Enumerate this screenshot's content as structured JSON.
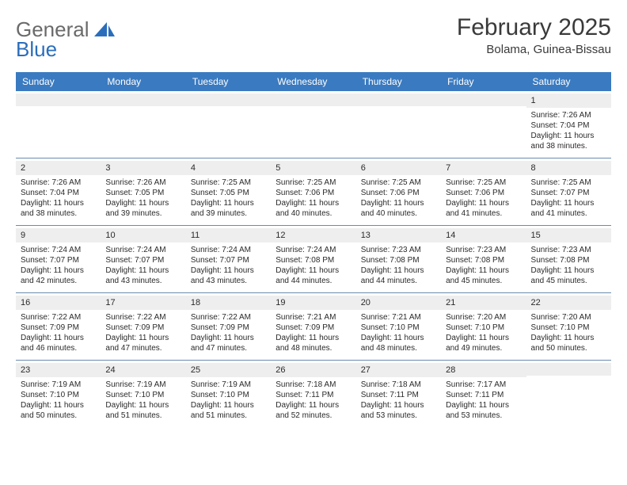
{
  "brand": {
    "word1": "General",
    "word2": "Blue"
  },
  "title": "February 2025",
  "location": "Bolama, Guinea-Bissau",
  "colors": {
    "header_bg": "#3a7ac0",
    "header_text": "#ffffff",
    "daynum_bg": "#eeeeee",
    "row_border": "#6a8bb0",
    "text": "#2a2a2a",
    "logo_gray": "#6a6a6a",
    "logo_blue": "#2a6ebb"
  },
  "fonts": {
    "title_size_pt": 22,
    "location_size_pt": 11,
    "dayhead_size_pt": 9,
    "cell_size_pt": 7.5
  },
  "day_headers": [
    "Sunday",
    "Monday",
    "Tuesday",
    "Wednesday",
    "Thursday",
    "Friday",
    "Saturday"
  ],
  "weeks": [
    [
      {
        "n": "",
        "sunrise": "",
        "sunset": "",
        "daylight": ""
      },
      {
        "n": "",
        "sunrise": "",
        "sunset": "",
        "daylight": ""
      },
      {
        "n": "",
        "sunrise": "",
        "sunset": "",
        "daylight": ""
      },
      {
        "n": "",
        "sunrise": "",
        "sunset": "",
        "daylight": ""
      },
      {
        "n": "",
        "sunrise": "",
        "sunset": "",
        "daylight": ""
      },
      {
        "n": "",
        "sunrise": "",
        "sunset": "",
        "daylight": ""
      },
      {
        "n": "1",
        "sunrise": "Sunrise: 7:26 AM",
        "sunset": "Sunset: 7:04 PM",
        "daylight": "Daylight: 11 hours and 38 minutes."
      }
    ],
    [
      {
        "n": "2",
        "sunrise": "Sunrise: 7:26 AM",
        "sunset": "Sunset: 7:04 PM",
        "daylight": "Daylight: 11 hours and 38 minutes."
      },
      {
        "n": "3",
        "sunrise": "Sunrise: 7:26 AM",
        "sunset": "Sunset: 7:05 PM",
        "daylight": "Daylight: 11 hours and 39 minutes."
      },
      {
        "n": "4",
        "sunrise": "Sunrise: 7:25 AM",
        "sunset": "Sunset: 7:05 PM",
        "daylight": "Daylight: 11 hours and 39 minutes."
      },
      {
        "n": "5",
        "sunrise": "Sunrise: 7:25 AM",
        "sunset": "Sunset: 7:06 PM",
        "daylight": "Daylight: 11 hours and 40 minutes."
      },
      {
        "n": "6",
        "sunrise": "Sunrise: 7:25 AM",
        "sunset": "Sunset: 7:06 PM",
        "daylight": "Daylight: 11 hours and 40 minutes."
      },
      {
        "n": "7",
        "sunrise": "Sunrise: 7:25 AM",
        "sunset": "Sunset: 7:06 PM",
        "daylight": "Daylight: 11 hours and 41 minutes."
      },
      {
        "n": "8",
        "sunrise": "Sunrise: 7:25 AM",
        "sunset": "Sunset: 7:07 PM",
        "daylight": "Daylight: 11 hours and 41 minutes."
      }
    ],
    [
      {
        "n": "9",
        "sunrise": "Sunrise: 7:24 AM",
        "sunset": "Sunset: 7:07 PM",
        "daylight": "Daylight: 11 hours and 42 minutes."
      },
      {
        "n": "10",
        "sunrise": "Sunrise: 7:24 AM",
        "sunset": "Sunset: 7:07 PM",
        "daylight": "Daylight: 11 hours and 43 minutes."
      },
      {
        "n": "11",
        "sunrise": "Sunrise: 7:24 AM",
        "sunset": "Sunset: 7:07 PM",
        "daylight": "Daylight: 11 hours and 43 minutes."
      },
      {
        "n": "12",
        "sunrise": "Sunrise: 7:24 AM",
        "sunset": "Sunset: 7:08 PM",
        "daylight": "Daylight: 11 hours and 44 minutes."
      },
      {
        "n": "13",
        "sunrise": "Sunrise: 7:23 AM",
        "sunset": "Sunset: 7:08 PM",
        "daylight": "Daylight: 11 hours and 44 minutes."
      },
      {
        "n": "14",
        "sunrise": "Sunrise: 7:23 AM",
        "sunset": "Sunset: 7:08 PM",
        "daylight": "Daylight: 11 hours and 45 minutes."
      },
      {
        "n": "15",
        "sunrise": "Sunrise: 7:23 AM",
        "sunset": "Sunset: 7:08 PM",
        "daylight": "Daylight: 11 hours and 45 minutes."
      }
    ],
    [
      {
        "n": "16",
        "sunrise": "Sunrise: 7:22 AM",
        "sunset": "Sunset: 7:09 PM",
        "daylight": "Daylight: 11 hours and 46 minutes."
      },
      {
        "n": "17",
        "sunrise": "Sunrise: 7:22 AM",
        "sunset": "Sunset: 7:09 PM",
        "daylight": "Daylight: 11 hours and 47 minutes."
      },
      {
        "n": "18",
        "sunrise": "Sunrise: 7:22 AM",
        "sunset": "Sunset: 7:09 PM",
        "daylight": "Daylight: 11 hours and 47 minutes."
      },
      {
        "n": "19",
        "sunrise": "Sunrise: 7:21 AM",
        "sunset": "Sunset: 7:09 PM",
        "daylight": "Daylight: 11 hours and 48 minutes."
      },
      {
        "n": "20",
        "sunrise": "Sunrise: 7:21 AM",
        "sunset": "Sunset: 7:10 PM",
        "daylight": "Daylight: 11 hours and 48 minutes."
      },
      {
        "n": "21",
        "sunrise": "Sunrise: 7:20 AM",
        "sunset": "Sunset: 7:10 PM",
        "daylight": "Daylight: 11 hours and 49 minutes."
      },
      {
        "n": "22",
        "sunrise": "Sunrise: 7:20 AM",
        "sunset": "Sunset: 7:10 PM",
        "daylight": "Daylight: 11 hours and 50 minutes."
      }
    ],
    [
      {
        "n": "23",
        "sunrise": "Sunrise: 7:19 AM",
        "sunset": "Sunset: 7:10 PM",
        "daylight": "Daylight: 11 hours and 50 minutes."
      },
      {
        "n": "24",
        "sunrise": "Sunrise: 7:19 AM",
        "sunset": "Sunset: 7:10 PM",
        "daylight": "Daylight: 11 hours and 51 minutes."
      },
      {
        "n": "25",
        "sunrise": "Sunrise: 7:19 AM",
        "sunset": "Sunset: 7:10 PM",
        "daylight": "Daylight: 11 hours and 51 minutes."
      },
      {
        "n": "26",
        "sunrise": "Sunrise: 7:18 AM",
        "sunset": "Sunset: 7:11 PM",
        "daylight": "Daylight: 11 hours and 52 minutes."
      },
      {
        "n": "27",
        "sunrise": "Sunrise: 7:18 AM",
        "sunset": "Sunset: 7:11 PM",
        "daylight": "Daylight: 11 hours and 53 minutes."
      },
      {
        "n": "28",
        "sunrise": "Sunrise: 7:17 AM",
        "sunset": "Sunset: 7:11 PM",
        "daylight": "Daylight: 11 hours and 53 minutes."
      },
      {
        "n": "",
        "sunrise": "",
        "sunset": "",
        "daylight": ""
      }
    ]
  ]
}
